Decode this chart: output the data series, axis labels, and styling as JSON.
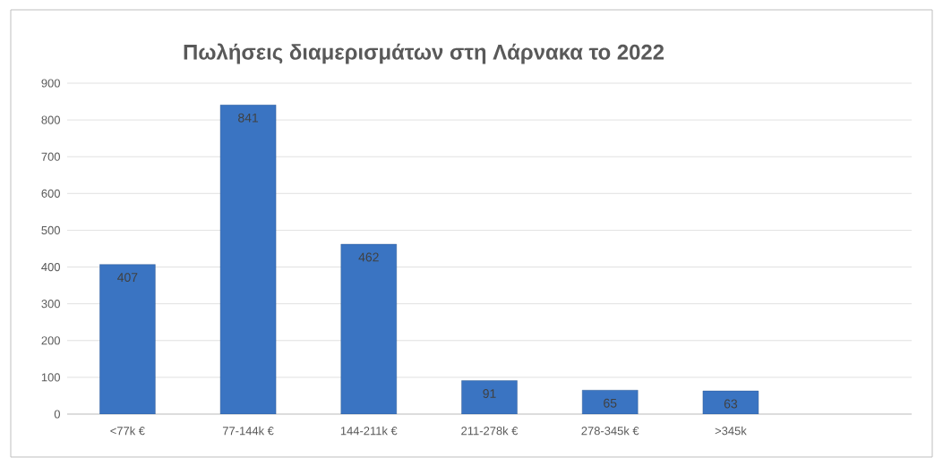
{
  "chart_data": {
    "type": "bar",
    "title": "Πωλήσεις διαμερισμάτων στη Λάρνακα το 2022",
    "categories": [
      "<77k €",
      "77-144k €",
      "144-211k €",
      "211-278k €",
      "278-345k €",
      ">345k",
      null
    ],
    "values": [
      407,
      841,
      462,
      91,
      65,
      63,
      null
    ],
    "color": "#3a74c2",
    "ylim": [
      0,
      900
    ],
    "yticks": [
      0,
      100,
      200,
      300,
      400,
      500,
      600,
      700,
      800,
      900
    ],
    "grid": "y",
    "data_labels": true
  }
}
